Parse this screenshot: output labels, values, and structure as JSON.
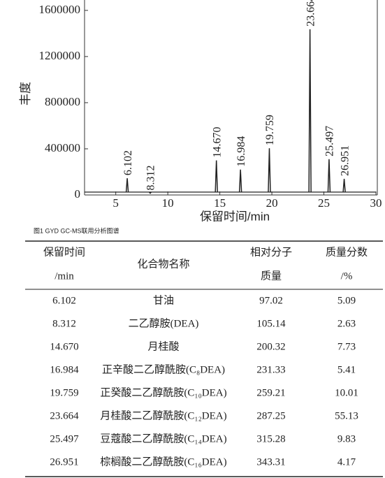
{
  "chart_data": {
    "type": "peaks",
    "xlabel": "保留时间/min",
    "ylabel": "丰度",
    "x": [
      6.102,
      8.312,
      14.67,
      16.984,
      19.759,
      23.664,
      25.497,
      26.951
    ],
    "peak_labels": [
      "6.102",
      "8.312",
      "14.670",
      "16.984",
      "19.759",
      "23.664",
      "25.497",
      "26.951"
    ],
    "values": [
      145000,
      15000,
      300000,
      220000,
      405000,
      1436000,
      310000,
      140000
    ],
    "baseline": 25000,
    "color": "#222222",
    "xlim": [
      2,
      30
    ],
    "xticks": [
      5,
      10,
      15,
      20,
      25,
      30
    ],
    "ylim": [
      0,
      1690000
    ],
    "yticks": [
      0,
      400000,
      800000,
      1200000,
      1600000
    ]
  },
  "caption": "图1   GYD GC-MS联用分析图谱",
  "table": {
    "header": [
      [
        "保留时间",
        "/min"
      ],
      [
        "化合物名称"
      ],
      [
        "相对分子",
        "质量"
      ],
      [
        "质量分数",
        "/%"
      ]
    ],
    "rows": [
      [
        "6.102",
        "甘油",
        "97.02",
        "5.09"
      ],
      [
        "8.312",
        "二乙醇胺(DEA)",
        "105.14",
        "2.63"
      ],
      [
        "14.670",
        "月桂酸",
        "200.32",
        "7.73"
      ],
      [
        "16.984",
        "正辛酸二乙醇酰胺(C₈DEA)",
        "231.33",
        "5.41"
      ],
      [
        "19.759",
        "正癸酸二乙醇酰胺(C₁₀DEA)",
        "259.21",
        "10.01"
      ],
      [
        "23.664",
        "月桂酸二乙醇酰胺(C₁₂DEA)",
        "287.25",
        "55.13"
      ],
      [
        "25.497",
        "豆蔻酸二乙醇酰胺(C₁₄DEA)",
        "315.28",
        "9.83"
      ],
      [
        "26.951",
        "棕榈酸二乙醇酰胺(C₁₆DEA)",
        "343.31",
        "4.17"
      ]
    ]
  }
}
